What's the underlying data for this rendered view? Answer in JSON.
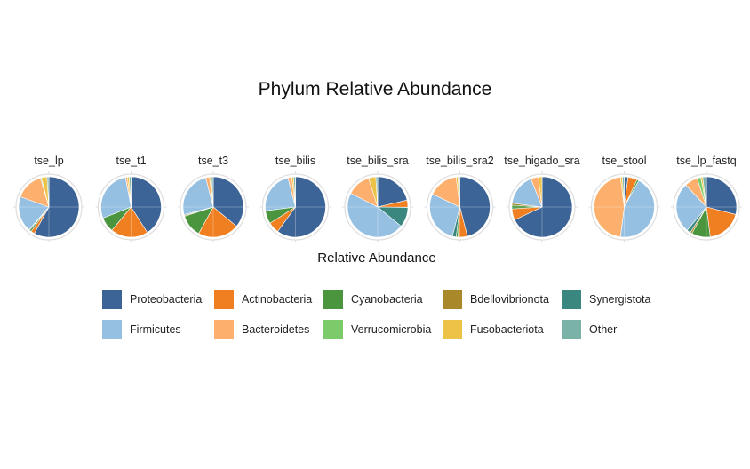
{
  "chart_data": {
    "type": "pie",
    "title": "Phylum Relative Abundance",
    "xlabel": "Relative Abundance",
    "legend_position": "bottom",
    "grid": true,
    "categories": [
      "Proteobacteria",
      "Actinobacteria",
      "Cyanobacteria",
      "Bdellovibrionota",
      "Synergistota",
      "Firmicutes",
      "Bacteroidetes",
      "Verrucomicrobia",
      "Fusobacteriota",
      "Other"
    ],
    "colors": [
      "#3c6496",
      "#f07f22",
      "#4a953e",
      "#a88828",
      "#3a877f",
      "#95c0e2",
      "#fdb06d",
      "#7ccb6a",
      "#edc347",
      "#7ab2a8"
    ],
    "series": [
      {
        "name": "tse_lp",
        "values": [
          0.58,
          0.02,
          0.01,
          0.0,
          0.005,
          0.19,
          0.15,
          0.005,
          0.03,
          0.01
        ]
      },
      {
        "name": "tse_t1",
        "values": [
          0.41,
          0.2,
          0.08,
          0.0,
          0.0,
          0.28,
          0.01,
          0.0,
          0.01,
          0.01
        ]
      },
      {
        "name": "tse_t3",
        "values": [
          0.36,
          0.22,
          0.12,
          0.005,
          0.005,
          0.25,
          0.02,
          0.0,
          0.01,
          0.01
        ]
      },
      {
        "name": "tse_bilis",
        "values": [
          0.6,
          0.06,
          0.07,
          0.0,
          0.0,
          0.23,
          0.02,
          0.0,
          0.01,
          0.01
        ]
      },
      {
        "name": "tse_bilis_sra",
        "values": [
          0.22,
          0.04,
          0.0,
          0.0,
          0.11,
          0.48,
          0.13,
          0.0,
          0.04,
          0.01
        ]
      },
      {
        "name": "tse_bilis_sra2",
        "values": [
          0.46,
          0.05,
          0.01,
          0.0,
          0.02,
          0.28,
          0.16,
          0.0,
          0.01,
          0.01
        ]
      },
      {
        "name": "tse_higado_sra",
        "values": [
          0.68,
          0.06,
          0.02,
          0.01,
          0.0,
          0.17,
          0.04,
          0.0,
          0.02,
          0.0
        ]
      },
      {
        "name": "tse_stool",
        "values": [
          0.02,
          0.05,
          0.01,
          0.0,
          0.0,
          0.44,
          0.46,
          0.0,
          0.01,
          0.01
        ]
      },
      {
        "name": "tse_lp_fastq",
        "values": [
          0.29,
          0.19,
          0.1,
          0.01,
          0.02,
          0.27,
          0.07,
          0.02,
          0.01,
          0.02
        ]
      }
    ]
  }
}
